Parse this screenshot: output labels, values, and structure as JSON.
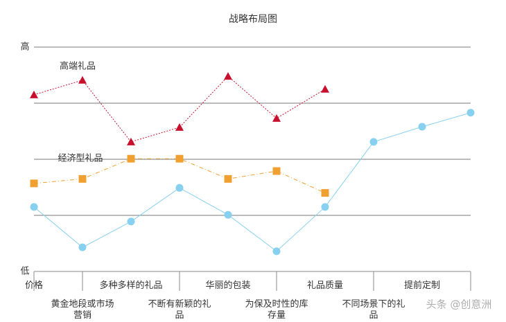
{
  "chart_data": {
    "type": "line",
    "title": "战略布局图",
    "categories": [
      "价格",
      "黄金地段或市场营销",
      "多种多样的礼品",
      "不断有新颖的礼品",
      "华丽的包装",
      "为保及时性的库存量",
      "礼品质量",
      "不同场景下的礼品",
      "提前定制",
      null
    ],
    "series": [
      {
        "name": "高端礼品",
        "color": "#c8102e",
        "marker": "triangle",
        "values": [
          3.15,
          3.41,
          2.31,
          2.57,
          3.48,
          2.73,
          3.25,
          null,
          null,
          null
        ]
      },
      {
        "name": "经济型礼品",
        "color": "#f0a030",
        "marker": "square",
        "values": [
          1.57,
          1.65,
          2.01,
          2.01,
          1.65,
          1.79,
          1.4,
          null,
          null,
          null
        ]
      },
      {
        "color": "#87d0f0",
        "marker": "circle",
        "values": [
          1.15,
          0.43,
          0.89,
          1.49,
          1.01,
          0.36,
          1.15,
          2.31,
          2.58,
          2.83
        ]
      }
    ],
    "ylim": [
      0,
      4
    ],
    "yticks": [
      {
        "value": 0,
        "label": "低"
      },
      {
        "value": 4,
        "label": "高"
      }
    ],
    "gridlines": [
      1,
      2,
      3,
      4
    ],
    "watermark": "头条 @创意洲"
  }
}
